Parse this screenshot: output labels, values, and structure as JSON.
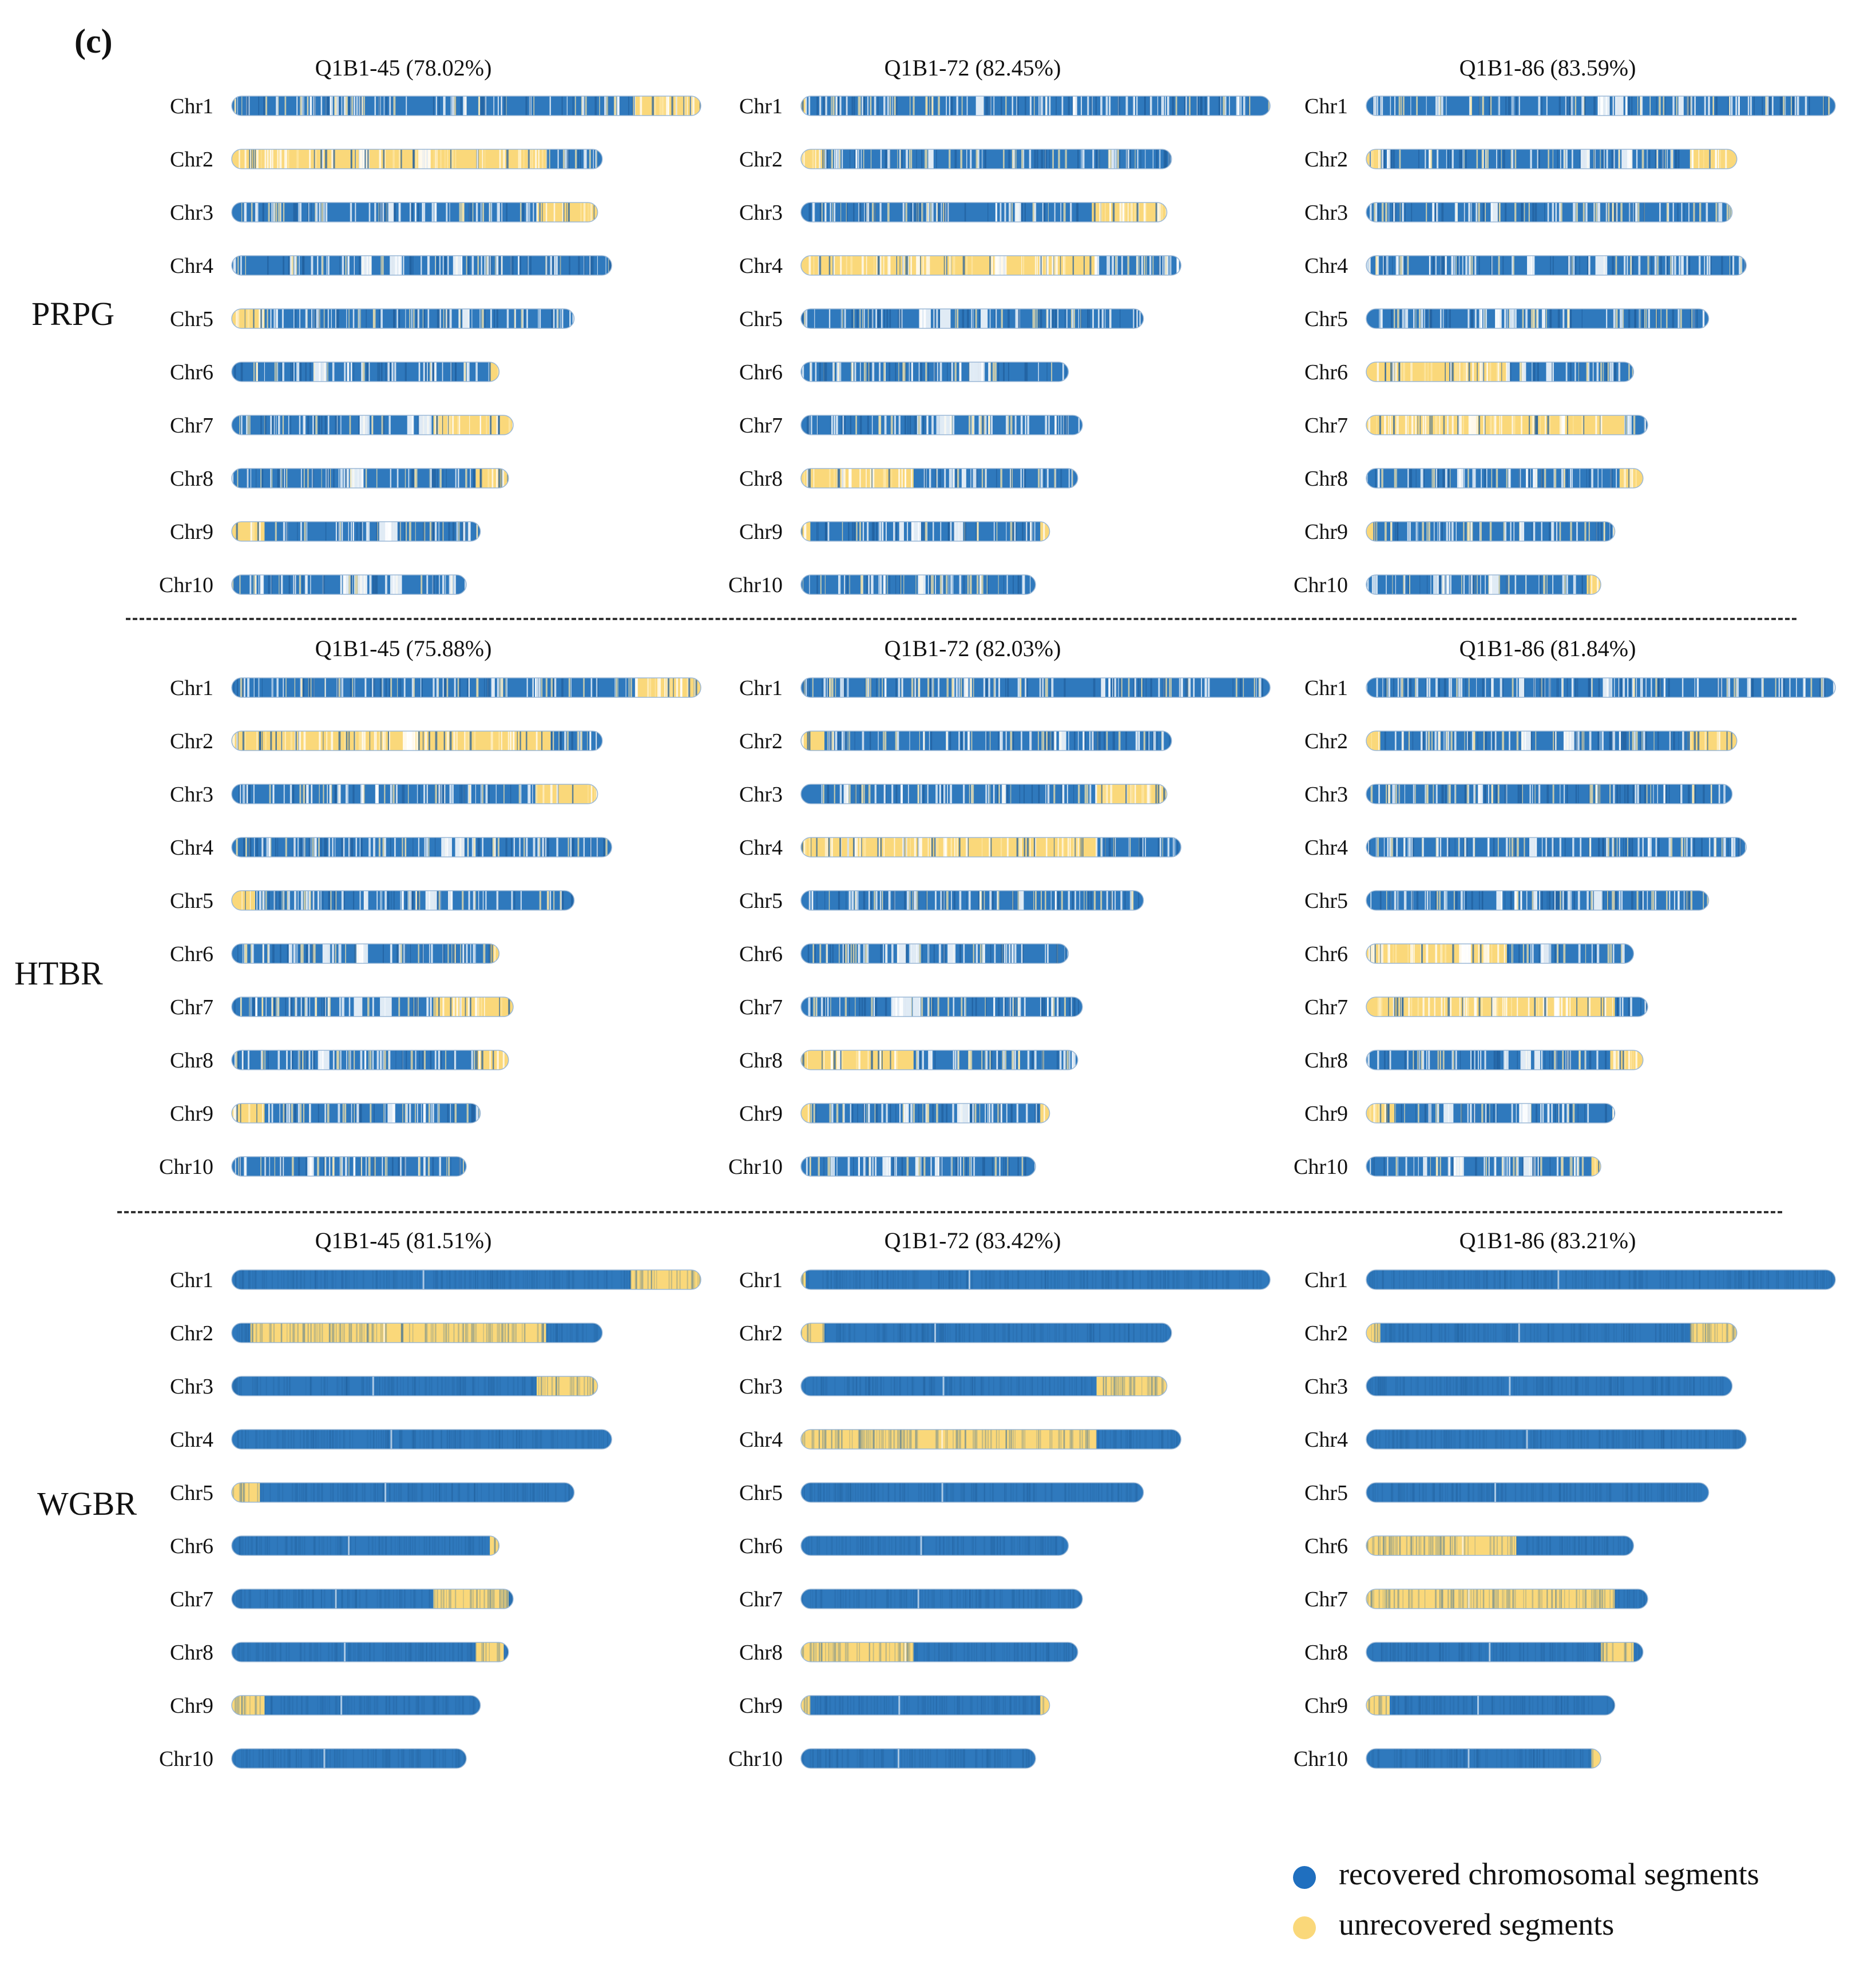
{
  "panel_label": "(c)",
  "colors": {
    "recovered": "#2f79bd",
    "recovered_dark": "#1f5e9c",
    "unrecovered": "#fad87a",
    "unrecovered_light": "#fde8a8",
    "gap": "#ffffff"
  },
  "legend": {
    "recovered_label": "recovered chromosomal segments",
    "unrecovered_label": "unrecovered segments"
  },
  "chromosome_names": [
    "Chr1",
    "Chr2",
    "Chr3",
    "Chr4",
    "Chr5",
    "Chr6",
    "Chr7",
    "Chr8",
    "Chr9",
    "Chr10"
  ],
  "chart_data": {
    "type": "chromosome-map",
    "description_units": "segment start/end as fraction of the longest chromosome (Chr1 = 1.0)",
    "relative_lengths": [
      1.0,
      0.79,
      0.78,
      0.81,
      0.73,
      0.57,
      0.6,
      0.59,
      0.53,
      0.5
    ],
    "methods": [
      {
        "name": "PRPG",
        "panels": [
          {
            "title": "Q1B1-45 (78.02%)",
            "line": "Q1B1-45",
            "rate": 78.02,
            "unrecovered": [
              [
                [
                  0.86,
                  1.0
                ]
              ],
              [
                [
                  0.0,
                  0.67
                ]
              ],
              [
                [
                  0.65,
                  0.78
                ]
              ],
              [],
              [
                [
                  0.0,
                  0.07
                ]
              ],
              [
                [
                  0.55,
                  0.57
                ]
              ],
              [
                [
                  0.43,
                  0.6
                ]
              ],
              [
                [
                  0.52,
                  0.59
                ]
              ],
              [
                [
                  0.0,
                  0.07
                ]
              ],
              []
            ]
          },
          {
            "title": "Q1B1-72 (82.45%)",
            "line": "Q1B1-72",
            "rate": 82.45,
            "unrecovered": [
              [
                [
                  0.0,
                  0.01
                ]
              ],
              [
                [
                  0.0,
                  0.05
                ]
              ],
              [
                [
                  0.62,
                  0.78
                ]
              ],
              [
                [
                  0.0,
                  0.63
                ]
              ],
              [],
              [],
              [],
              [
                [
                  0.0,
                  0.24
                ]
              ],
              [
                [
                  0.0,
                  0.02
                ],
                [
                  0.51,
                  0.53
                ]
              ],
              []
            ]
          },
          {
            "title": "Q1B1-86 (83.59%)",
            "line": "Q1B1-86",
            "rate": 83.59,
            "unrecovered": [
              [],
              [
                [
                  0.0,
                  0.03
                ],
                [
                  0.69,
                  0.79
                ]
              ],
              [],
              [],
              [],
              [
                [
                  0.0,
                  0.3
                ]
              ],
              [
                [
                  0.0,
                  0.55
                ]
              ],
              [
                [
                  0.54,
                  0.59
                ]
              ],
              [
                [
                  0.0,
                  0.02
                ]
              ],
              [
                [
                  0.47,
                  0.5
                ]
              ]
            ]
          }
        ]
      },
      {
        "name": "HTBR",
        "panels": [
          {
            "title": "Q1B1-45 (75.88%)",
            "line": "Q1B1-45",
            "rate": 75.88,
            "unrecovered": [
              [
                [
                  0.86,
                  1.0
                ]
              ],
              [
                [
                  0.0,
                  0.68
                ]
              ],
              [
                [
                  0.65,
                  0.78
                ]
              ],
              [],
              [
                [
                  0.0,
                  0.05
                ]
              ],
              [
                [
                  0.55,
                  0.57
                ]
              ],
              [
                [
                  0.43,
                  0.6
                ]
              ],
              [
                [
                  0.52,
                  0.59
                ]
              ],
              [
                [
                  0.0,
                  0.07
                ]
              ],
              []
            ]
          },
          {
            "title": "Q1B1-72 (82.03%)",
            "line": "Q1B1-72",
            "rate": 82.03,
            "unrecovered": [
              [],
              [
                [
                  0.0,
                  0.05
                ]
              ],
              [
                [
                  0.63,
                  0.78
                ]
              ],
              [
                [
                  0.0,
                  0.63
                ]
              ],
              [],
              [],
              [],
              [
                [
                  0.0,
                  0.24
                ]
              ],
              [
                [
                  0.0,
                  0.02
                ],
                [
                  0.51,
                  0.53
                ]
              ],
              []
            ]
          },
          {
            "title": "Q1B1-86 (81.84%)",
            "line": "Q1B1-86",
            "rate": 81.84,
            "unrecovered": [
              [],
              [
                [
                  0.0,
                  0.03
                ],
                [
                  0.69,
                  0.79
                ]
              ],
              [],
              [],
              [],
              [
                [
                  0.0,
                  0.3
                ]
              ],
              [
                [
                  0.0,
                  0.53
                ]
              ],
              [
                [
                  0.52,
                  0.59
                ]
              ],
              [
                [
                  0.0,
                  0.06
                ]
              ],
              [
                [
                  0.48,
                  0.5
                ]
              ]
            ]
          }
        ]
      },
      {
        "name": "WGBR",
        "panels": [
          {
            "title": "Q1B1-45 (81.51%)",
            "line": "Q1B1-45",
            "rate": 81.51,
            "unrecovered": [
              [
                [
                  0.85,
                  1.0
                ]
              ],
              [
                [
                  0.04,
                  0.67
                ]
              ],
              [
                [
                  0.65,
                  0.78
                ]
              ],
              [],
              [
                [
                  0.0,
                  0.06
                ]
              ],
              [
                [
                  0.55,
                  0.57
                ]
              ],
              [
                [
                  0.43,
                  0.59
                ]
              ],
              [
                [
                  0.52,
                  0.58
                ]
              ],
              [
                [
                  0.0,
                  0.07
                ]
              ],
              []
            ]
          },
          {
            "title": "Q1B1-72 (83.42%)",
            "line": "Q1B1-72",
            "rate": 83.42,
            "unrecovered": [
              [
                [
                  0.0,
                  0.01
                ]
              ],
              [
                [
                  0.0,
                  0.05
                ]
              ],
              [
                [
                  0.63,
                  0.78
                ]
              ],
              [
                [
                  0.0,
                  0.63
                ]
              ],
              [],
              [],
              [],
              [
                [
                  0.0,
                  0.24
                ]
              ],
              [
                [
                  0.0,
                  0.02
                ],
                [
                  0.51,
                  0.53
                ]
              ],
              []
            ]
          },
          {
            "title": "Q1B1-86 (83.21%)",
            "line": "Q1B1-86",
            "rate": 83.21,
            "unrecovered": [
              [],
              [
                [
                  0.0,
                  0.03
                ],
                [
                  0.69,
                  0.79
                ]
              ],
              [],
              [],
              [],
              [
                [
                  0.0,
                  0.32
                ]
              ],
              [
                [
                  0.0,
                  0.53
                ]
              ],
              [
                [
                  0.5,
                  0.57
                ]
              ],
              [
                [
                  0.0,
                  0.05
                ]
              ],
              [
                [
                  0.48,
                  0.5
                ]
              ]
            ]
          }
        ]
      }
    ]
  }
}
